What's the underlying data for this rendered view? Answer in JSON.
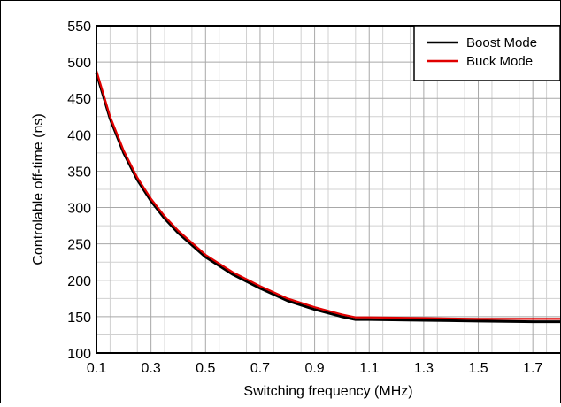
{
  "chart_data": {
    "type": "line",
    "title": "",
    "xlabel": "Switching frequency (MHz)",
    "ylabel": "Controlable off-time (ns)",
    "xlim": [
      0.1,
      1.8
    ],
    "ylim": [
      100,
      550
    ],
    "x_ticks": [
      "0.1",
      "0.3",
      "0.5",
      "0.7",
      "0.9",
      "1.1",
      "1.3",
      "1.5",
      "1.7"
    ],
    "y_ticks": [
      "100",
      "150",
      "200",
      "250",
      "300",
      "350",
      "400",
      "450",
      "500",
      "550"
    ],
    "x_tick_values": [
      0.1,
      0.3,
      0.5,
      0.7,
      0.9,
      1.1,
      1.3,
      1.5,
      1.7
    ],
    "y_tick_values": [
      100,
      150,
      200,
      250,
      300,
      350,
      400,
      450,
      500,
      550
    ],
    "grid": true,
    "legend_position": "top-right",
    "series": [
      {
        "name": "Boost Mode",
        "color": "#000000",
        "x": [
          0.1,
          0.15,
          0.2,
          0.25,
          0.3,
          0.35,
          0.4,
          0.5,
          0.6,
          0.7,
          0.8,
          0.9,
          1.0,
          1.05,
          1.1,
          1.3,
          1.5,
          1.7,
          1.8
        ],
        "y": [
          485,
          422,
          375,
          338,
          309,
          285,
          265,
          232,
          208,
          189,
          172,
          160,
          150,
          146,
          146,
          145,
          144,
          143,
          143
        ]
      },
      {
        "name": "Buck Mode",
        "color": "#e00000",
        "x": [
          0.1,
          0.15,
          0.2,
          0.25,
          0.3,
          0.35,
          0.4,
          0.5,
          0.6,
          0.7,
          0.8,
          0.9,
          1.0,
          1.05,
          1.1,
          1.3,
          1.5,
          1.7,
          1.8
        ],
        "y": [
          488,
          425,
          378,
          341,
          312,
          288,
          268,
          235,
          211,
          192,
          175,
          163,
          153,
          149,
          149,
          148,
          147,
          147,
          147
        ]
      }
    ]
  }
}
